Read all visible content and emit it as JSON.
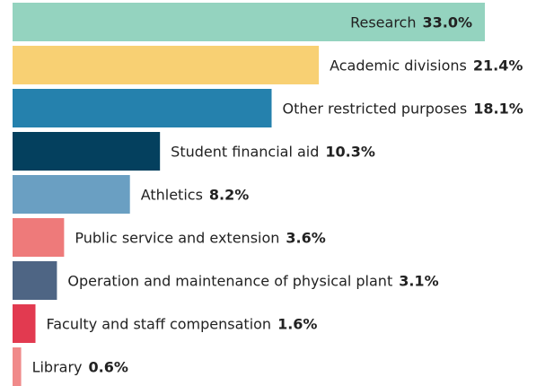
{
  "chart_data": {
    "type": "bar",
    "categories": [
      "Research",
      "Academic divisions",
      "Other restricted purposes",
      "Student financial aid",
      "Athletics",
      "Public service and extension",
      "Operation and maintenance of physical plant",
      "Faculty and staff compensation",
      "Library"
    ],
    "values": [
      33.0,
      21.4,
      18.1,
      10.3,
      8.2,
      3.6,
      3.1,
      1.6,
      0.6
    ],
    "value_labels": [
      "33.0%",
      "21.4%",
      "18.1%",
      "10.3%",
      "8.2%",
      "3.6%",
      "3.1%",
      "1.6%",
      "0.6%"
    ],
    "colors": [
      "#94d3bf",
      "#f8d073",
      "#2581ad",
      "#04405e",
      "#6a9fc2",
      "#ee7a7a",
      "#4e6584",
      "#e23a50",
      "#f08a8a"
    ]
  }
}
